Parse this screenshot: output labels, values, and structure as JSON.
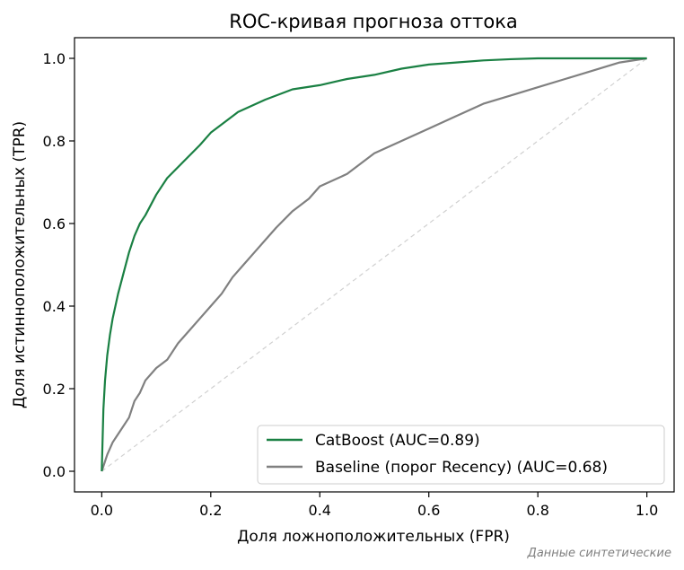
{
  "chart_data": {
    "type": "line",
    "title": "ROC-кривая прогноза оттока",
    "xlabel": "Доля ложноположительных (FPR)",
    "ylabel": "Доля истинноположительных (TPR)",
    "footnote": "Данные синтетические",
    "xlim": [
      -0.05,
      1.05
    ],
    "ylim": [
      -0.05,
      1.05
    ],
    "x_ticks": [
      0.0,
      0.2,
      0.4,
      0.6,
      0.8,
      1.0
    ],
    "x_tick_labels": [
      "0.0",
      "0.2",
      "0.4",
      "0.6",
      "0.8",
      "1.0"
    ],
    "y_ticks": [
      0.0,
      0.2,
      0.4,
      0.6,
      0.8,
      1.0
    ],
    "y_tick_labels": [
      "0.0",
      "0.2",
      "0.4",
      "0.6",
      "0.8",
      "1.0"
    ],
    "grid": false,
    "legend_position": "lower-right",
    "series": [
      {
        "name": "CatBoost (AUC=0.89)",
        "color": "#1a8043",
        "style": "solid",
        "x": [
          0.0,
          0.003,
          0.006,
          0.01,
          0.015,
          0.02,
          0.03,
          0.04,
          0.05,
          0.06,
          0.07,
          0.08,
          0.1,
          0.12,
          0.15,
          0.18,
          0.2,
          0.25,
          0.3,
          0.35,
          0.4,
          0.45,
          0.5,
          0.55,
          0.6,
          0.65,
          0.7,
          0.75,
          0.8,
          0.85,
          0.9,
          0.95,
          1.0
        ],
        "y": [
          0.0,
          0.15,
          0.22,
          0.28,
          0.33,
          0.37,
          0.43,
          0.48,
          0.53,
          0.57,
          0.6,
          0.62,
          0.67,
          0.71,
          0.75,
          0.79,
          0.82,
          0.87,
          0.9,
          0.925,
          0.935,
          0.95,
          0.96,
          0.975,
          0.985,
          0.99,
          0.995,
          0.998,
          1.0,
          1.0,
          1.0,
          1.0,
          1.0
        ]
      },
      {
        "name": "Baseline (порог Recency) (AUC=0.68)",
        "color": "#808080",
        "style": "solid",
        "x": [
          0.0,
          0.01,
          0.02,
          0.03,
          0.05,
          0.06,
          0.07,
          0.08,
          0.1,
          0.12,
          0.14,
          0.16,
          0.18,
          0.2,
          0.22,
          0.24,
          0.26,
          0.28,
          0.3,
          0.32,
          0.35,
          0.38,
          0.4,
          0.45,
          0.5,
          0.55,
          0.6,
          0.65,
          0.7,
          0.75,
          0.8,
          0.85,
          0.9,
          0.95,
          1.0
        ],
        "y": [
          0.0,
          0.04,
          0.07,
          0.09,
          0.13,
          0.17,
          0.19,
          0.22,
          0.25,
          0.27,
          0.31,
          0.34,
          0.37,
          0.4,
          0.43,
          0.47,
          0.5,
          0.53,
          0.56,
          0.59,
          0.63,
          0.66,
          0.69,
          0.72,
          0.77,
          0.8,
          0.83,
          0.86,
          0.89,
          0.91,
          0.93,
          0.95,
          0.97,
          0.99,
          1.0
        ]
      },
      {
        "name": "",
        "color": "#d0d0d0",
        "style": "dashed",
        "x": [
          0.0,
          1.0
        ],
        "y": [
          0.0,
          1.0
        ]
      }
    ]
  }
}
